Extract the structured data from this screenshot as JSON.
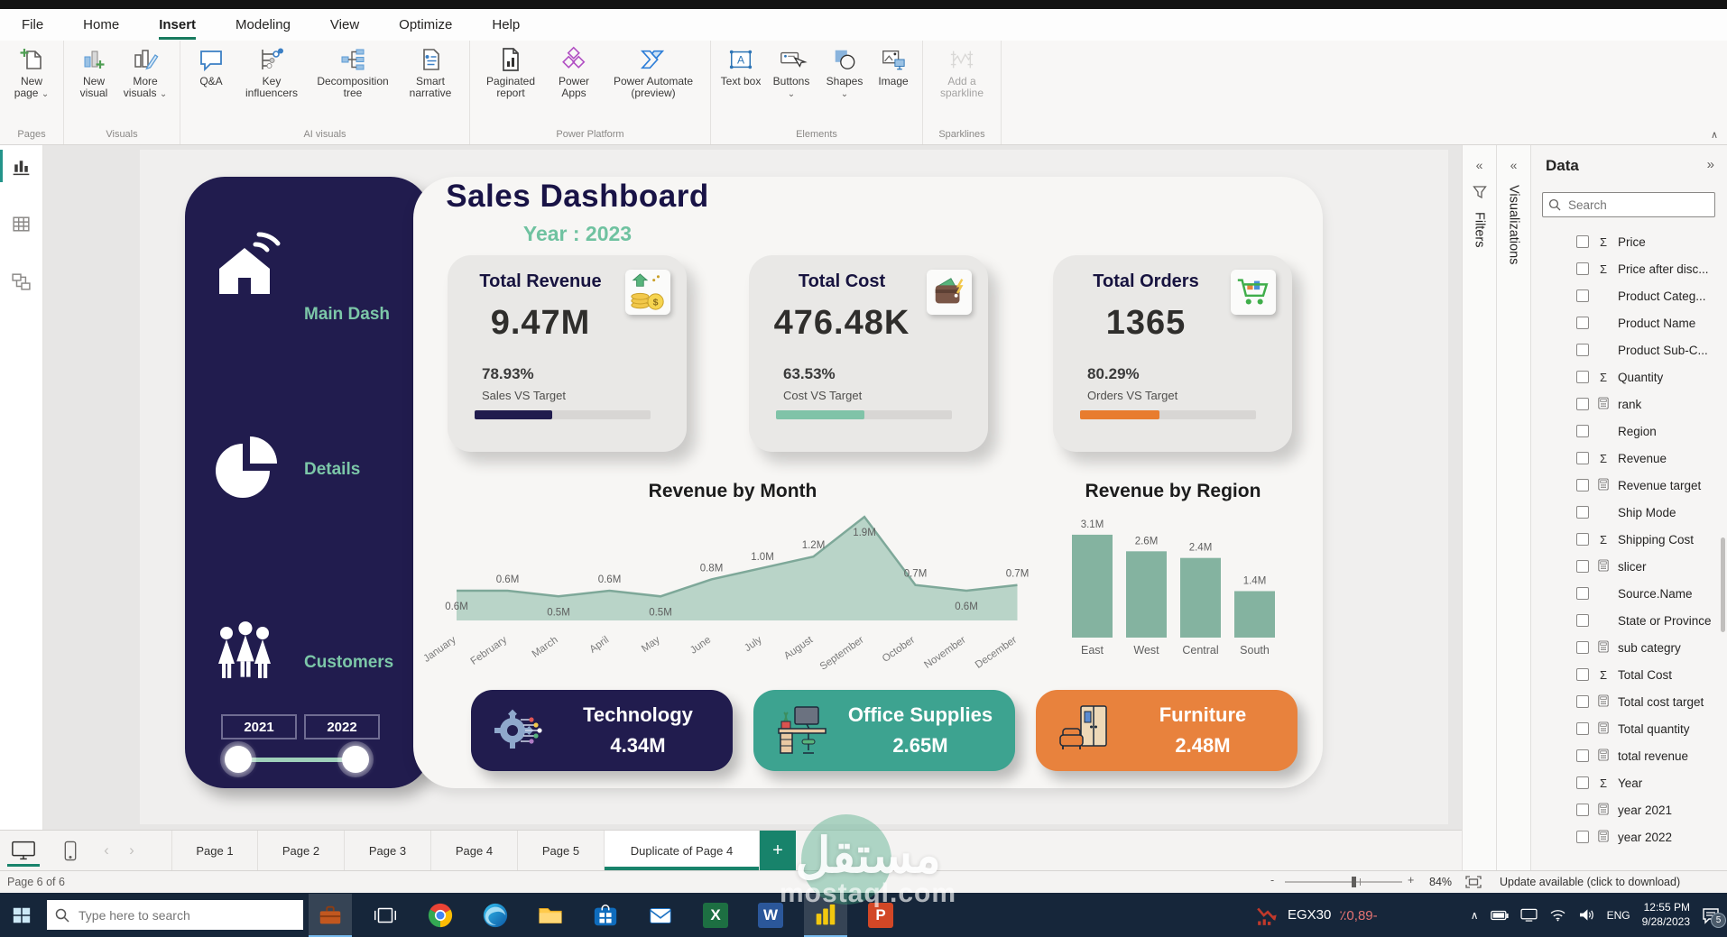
{
  "menubar": {
    "items": [
      "File",
      "Home",
      "Insert",
      "Modeling",
      "View",
      "Optimize",
      "Help"
    ],
    "active": "Insert"
  },
  "ribbon": {
    "groups": [
      {
        "label": "Pages",
        "buttons": [
          {
            "label": "New page",
            "dropdown": true
          }
        ]
      },
      {
        "label": "Visuals",
        "buttons": [
          {
            "label": "New visual"
          },
          {
            "label": "More visuals",
            "dropdown": true
          }
        ]
      },
      {
        "label": "AI visuals",
        "buttons": [
          {
            "label": "Q&A"
          },
          {
            "label": "Key influencers"
          },
          {
            "label": "Decomposition tree"
          },
          {
            "label": "Smart narrative"
          }
        ]
      },
      {
        "label": "Power Platform",
        "buttons": [
          {
            "label": "Paginated report"
          },
          {
            "label": "Power Apps"
          },
          {
            "label": "Power Automate (preview)"
          }
        ]
      },
      {
        "label": "Elements",
        "buttons": [
          {
            "label": "Text box"
          },
          {
            "label": "Buttons",
            "dropdown": true
          },
          {
            "label": "Shapes",
            "dropdown": true
          },
          {
            "label": "Image"
          }
        ]
      },
      {
        "label": "Sparklines",
        "buttons": [
          {
            "label": "Add a sparkline",
            "disabled": true
          }
        ]
      }
    ]
  },
  "dashboard": {
    "title": "Sales Dashboard",
    "subtitle": "Year : 2023",
    "nav": [
      {
        "label": "Main Dash",
        "icon": "home-icon"
      },
      {
        "label": "Details",
        "icon": "pie-chart-icon"
      },
      {
        "label": "Customers",
        "icon": "people-icon"
      }
    ],
    "year_filter": {
      "from": "2021",
      "to": "2022"
    },
    "kpis": [
      {
        "title": "Total Revenue",
        "value": "9.47M",
        "pct": "78.93%",
        "target_label": "Sales VS Target",
        "icon": "money-growth-icon",
        "bar_color": "#211c4e",
        "bar_fill": 44
      },
      {
        "title": "Total Cost",
        "value": "476.48K",
        "pct": "63.53%",
        "target_label": "Cost VS Target",
        "icon": "wallet-icon",
        "bar_color": "#80c3a8",
        "bar_fill": 50
      },
      {
        "title": "Total Orders",
        "value": "1365",
        "pct": "80.29%",
        "target_label": "Orders VS Target",
        "icon": "cart-icon",
        "bar_color": "#e87c2e",
        "bar_fill": 45
      }
    ],
    "categories": [
      {
        "label": "Technology",
        "value": "4.34M",
        "color": "#211c4e",
        "icon": "gear-circuit-icon"
      },
      {
        "label": "Office Supplies",
        "value": "2.65M",
        "color": "#3da390",
        "icon": "desk-icon"
      },
      {
        "label": "Furniture",
        "value": "2.48M",
        "color": "#e8823d",
        "icon": "furniture-icon"
      }
    ]
  },
  "chart_data": [
    {
      "type": "area",
      "title": "Revenue by Month",
      "categories": [
        "January",
        "February",
        "March",
        "April",
        "May",
        "June",
        "July",
        "August",
        "September",
        "October",
        "November",
        "December"
      ],
      "values": [
        0.6,
        0.6,
        0.5,
        0.6,
        0.5,
        0.8,
        1.0,
        1.2,
        1.9,
        0.7,
        0.6,
        0.7
      ],
      "data_labels": [
        "0.6M",
        "0.6M",
        "0.5M",
        "0.6M",
        "0.5M",
        "0.8M",
        "1.0M",
        "1.2M",
        "1.9M",
        "0.7M",
        "0.6M",
        "0.7M"
      ],
      "label_side": [
        "below",
        "above",
        "below",
        "above",
        "below",
        "above",
        "above",
        "above",
        "below",
        "above",
        "below",
        "above"
      ],
      "fill_color": "#b5d2c5",
      "line_color": "#7ea899",
      "grid": false,
      "legend": false
    },
    {
      "type": "bar",
      "title": "Revenue by Region",
      "categories": [
        "East",
        "West",
        "Central",
        "South"
      ],
      "values": [
        3.1,
        2.6,
        2.4,
        1.4
      ],
      "data_labels": [
        "3.1M",
        "2.6M",
        "2.4M",
        "1.4M"
      ],
      "bar_color": "#84b3a0",
      "grid": false,
      "legend": false
    }
  ],
  "panels": {
    "filters": {
      "label": "Filters"
    },
    "visualizations": {
      "label": "Visualizations"
    },
    "data": {
      "title": "Data",
      "search_placeholder": "Search",
      "fields": [
        {
          "name": "Price",
          "icon": "sigma"
        },
        {
          "name": "Price after disc...",
          "icon": "sigma"
        },
        {
          "name": "Product Categ...",
          "icon": "none"
        },
        {
          "name": "Product Name",
          "icon": "none"
        },
        {
          "name": "Product Sub-C...",
          "icon": "none"
        },
        {
          "name": "Quantity",
          "icon": "sigma"
        },
        {
          "name": "rank",
          "icon": "calc"
        },
        {
          "name": "Region",
          "icon": "none"
        },
        {
          "name": "Revenue",
          "icon": "sigma"
        },
        {
          "name": "Revenue target",
          "icon": "calc"
        },
        {
          "name": "Ship Mode",
          "icon": "none"
        },
        {
          "name": "Shipping Cost",
          "icon": "sigma"
        },
        {
          "name": "slicer",
          "icon": "calc"
        },
        {
          "name": "Source.Name",
          "icon": "none"
        },
        {
          "name": "State or Province",
          "icon": "none"
        },
        {
          "name": "sub categry",
          "icon": "calc"
        },
        {
          "name": "Total Cost",
          "icon": "sigma"
        },
        {
          "name": "Total cost target",
          "icon": "calc"
        },
        {
          "name": "Total quantity",
          "icon": "calc"
        },
        {
          "name": "total revenue",
          "icon": "calc"
        },
        {
          "name": "Year",
          "icon": "sigma"
        },
        {
          "name": "year 2021",
          "icon": "calc"
        },
        {
          "name": "year 2022",
          "icon": "calc"
        }
      ]
    }
  },
  "pagebar": {
    "tabs": [
      {
        "label": "Page 1",
        "active": false
      },
      {
        "label": "Page 2",
        "active": false
      },
      {
        "label": "Page 3",
        "active": false
      },
      {
        "label": "Page 4",
        "active": false
      },
      {
        "label": "Page 5",
        "active": false
      },
      {
        "label": "Duplicate of Page 4",
        "active": true
      }
    ]
  },
  "statusbar": {
    "page_info": "Page 6 of 6",
    "zoom": "84%",
    "update_text": "Update available (click to download)"
  },
  "taskbar": {
    "search_placeholder": "Type here to search",
    "apps": [
      {
        "name": "briefcase",
        "type": "briefcase",
        "active": true
      },
      {
        "name": "task-view",
        "type": "taskview",
        "active": false
      },
      {
        "name": "chrome",
        "type": "chrome",
        "active": false
      },
      {
        "name": "edge",
        "type": "edge",
        "active": false
      },
      {
        "name": "file-explorer",
        "type": "folder",
        "active": false
      },
      {
        "name": "store",
        "type": "store",
        "active": false
      },
      {
        "name": "mail",
        "type": "mail",
        "active": false
      },
      {
        "name": "excel",
        "type": "tile",
        "glyph": "X",
        "color": "#1d6f42",
        "active": false
      },
      {
        "name": "word",
        "type": "tile",
        "glyph": "W",
        "color": "#2b579a",
        "active": false
      },
      {
        "name": "power-bi",
        "type": "powerbi",
        "active": true
      },
      {
        "name": "powerpoint",
        "type": "tile",
        "glyph": "P",
        "color": "#d24726",
        "active": false
      }
    ],
    "stock": {
      "symbol": "EGX30",
      "change": "٪0,89-"
    },
    "tray": {
      "lang": "ENG",
      "time": "12:55 PM",
      "date": "9/28/2023",
      "notification_count": "5"
    }
  },
  "watermark": {
    "text": "مستقل",
    "domain": "mostaql.com"
  },
  "accent_colors": {
    "pbi_green": "#18836b",
    "navy": "#211c4e",
    "teal": "#3da390",
    "orange": "#e8823d"
  }
}
